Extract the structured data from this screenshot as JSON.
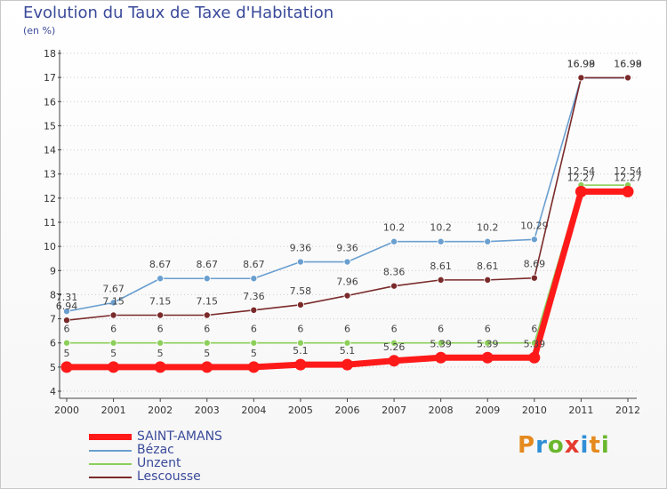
{
  "header": {
    "title": "Evolution du Taux de Taxe d'Habitation",
    "subtitle": "(en %)"
  },
  "logo": {
    "text": "Proxiti",
    "colors": [
      "#e58a1f",
      "#2f8fd6",
      "#6ab72e",
      "#e53a2f",
      "#2f8fd6",
      "#e58a1f",
      "#6ab72e"
    ]
  },
  "chart_data": {
    "type": "line",
    "title": "Evolution du Taux de Taxe d'Habitation",
    "ylabel": "(en %)",
    "xlabel": "",
    "x": [
      "2000",
      "2001",
      "2002",
      "2003",
      "2004",
      "2005",
      "2006",
      "2007",
      "2008",
      "2009",
      "2010",
      "2011",
      "2012"
    ],
    "ylim": [
      4,
      18
    ],
    "yticks": [
      "4",
      "5",
      "6",
      "7",
      "8",
      "9",
      "10",
      "11",
      "12",
      "13",
      "14",
      "15",
      "16",
      "17",
      "18"
    ],
    "grid": "horizontal dotted",
    "legend_position": "bottom-left",
    "series": [
      {
        "name": "Bézac",
        "color": "#6a9fd0",
        "values": [
          7.31,
          7.67,
          8.67,
          8.67,
          8.67,
          9.36,
          9.36,
          10.2,
          10.2,
          10.2,
          10.29,
          16.98,
          16.98
        ],
        "labels": [
          "7.31",
          "7.67",
          "8.67",
          "8.67",
          "8.67",
          "9.36",
          "9.36",
          "10.2",
          "10.2",
          "10.2",
          "10.29",
          "16.98",
          "16.98"
        ]
      },
      {
        "name": "Lescousse",
        "color": "#7a2a2a",
        "values": [
          6.94,
          7.15,
          7.15,
          7.15,
          7.36,
          7.58,
          7.96,
          8.36,
          8.61,
          8.61,
          8.69,
          16.99,
          16.99
        ],
        "labels": [
          "6.94",
          "7.15",
          "7.15",
          "7.15",
          "7.36",
          "7.58",
          "7.96",
          "8.36",
          "8.61",
          "8.61",
          "8.69",
          "16.99",
          "16.99"
        ]
      },
      {
        "name": "Unzent",
        "color": "#8ccf5a",
        "values": [
          6,
          6,
          6,
          6,
          6,
          6,
          6,
          6,
          6,
          6,
          6,
          12.54,
          12.54
        ],
        "labels": [
          "6",
          "6",
          "6",
          "6",
          "6",
          "6",
          "6",
          "6",
          "6",
          "6",
          "6",
          "12.54",
          "12.54"
        ]
      },
      {
        "name": "SAINT-AMANS",
        "color": "#ff1a1a",
        "values": [
          5,
          5,
          5,
          5,
          5,
          5.1,
          5.1,
          5.26,
          5.39,
          5.39,
          5.39,
          12.27,
          12.27
        ],
        "labels": [
          "5",
          "5",
          "5",
          "5",
          "5",
          "5.1",
          "5.1",
          "5.26",
          "5.39",
          "5.39",
          "5.39",
          "12.27",
          "12.27"
        ]
      }
    ],
    "legend": [
      {
        "name": "SAINT-AMANS",
        "color": "#ff1a1a"
      },
      {
        "name": "Bézac",
        "color": "#6a9fd0"
      },
      {
        "name": "Unzent",
        "color": "#8ccf5a"
      },
      {
        "name": "Lescousse",
        "color": "#7a2a2a"
      }
    ]
  }
}
